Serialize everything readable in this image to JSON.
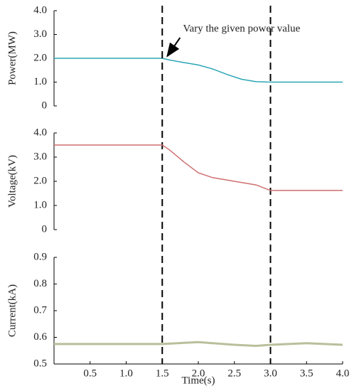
{
  "chart_data": [
    {
      "type": "line",
      "ylabel": "Power(MW)",
      "color": "#2ba6b7",
      "x": [
        0,
        0.5,
        1.0,
        1.5,
        1.6,
        1.8,
        2.0,
        2.2,
        2.4,
        2.6,
        2.8,
        3.0,
        3.5,
        4.0
      ],
      "values": [
        2.0,
        2.0,
        2.0,
        2.0,
        1.93,
        1.82,
        1.72,
        1.55,
        1.32,
        1.12,
        1.02,
        1.0,
        1.0,
        1.0
      ],
      "xlim": [
        0,
        4
      ],
      "ylim": [
        0,
        4
      ],
      "yticks": [
        0,
        {
          "value": 1,
          "label": "1.0"
        },
        {
          "value": 2,
          "label": "2.0"
        },
        {
          "value": 3,
          "label": "3.0"
        },
        {
          "value": 4,
          "label": "4.0"
        }
      ],
      "vlines": [
        1.5,
        3.0
      ],
      "annotation": {
        "text": "Vary the given power value",
        "x": 1.55,
        "y": 1.97
      }
    },
    {
      "type": "line",
      "ylabel": "Voltage(kV)",
      "color": "#cf6f6f",
      "x": [
        0,
        0.5,
        1.0,
        1.5,
        1.6,
        1.8,
        2.0,
        2.2,
        2.4,
        2.6,
        2.8,
        3.0,
        3.5,
        4.0
      ],
      "values": [
        3.5,
        3.5,
        3.5,
        3.5,
        3.3,
        2.8,
        2.35,
        2.15,
        2.05,
        1.95,
        1.85,
        1.62,
        1.62,
        1.62
      ],
      "xlim": [
        0,
        4
      ],
      "ylim": [
        0,
        4
      ],
      "yticks": [
        0,
        {
          "value": 1,
          "label": "1.0"
        },
        {
          "value": 2,
          "label": "2.0"
        },
        {
          "value": 3,
          "label": "3.0"
        },
        {
          "value": 4,
          "label": "4.0"
        }
      ]
    },
    {
      "type": "line",
      "ylabel": "Current(kA)",
      "xlabel": "Time(s)",
      "color": "#b9bf9b",
      "x": [
        0,
        0.5,
        1.0,
        1.5,
        2.0,
        2.5,
        2.8,
        3.0,
        3.5,
        4.0
      ],
      "values": [
        0.575,
        0.575,
        0.575,
        0.575,
        0.582,
        0.572,
        0.568,
        0.572,
        0.578,
        0.572
      ],
      "xlim": [
        0,
        4
      ],
      "ylim": [
        0.5,
        0.9
      ],
      "yticks": [
        0.5,
        0.6,
        0.7,
        0.8,
        0.9
      ],
      "xticks": [
        0.5,
        {
          "value": 1,
          "label": "1.0"
        },
        1.5,
        {
          "value": 2,
          "label": "2.0"
        },
        2.5,
        {
          "value": 3,
          "label": "3.0"
        },
        3.5,
        {
          "value": 4,
          "label": "4.0"
        }
      ]
    }
  ]
}
